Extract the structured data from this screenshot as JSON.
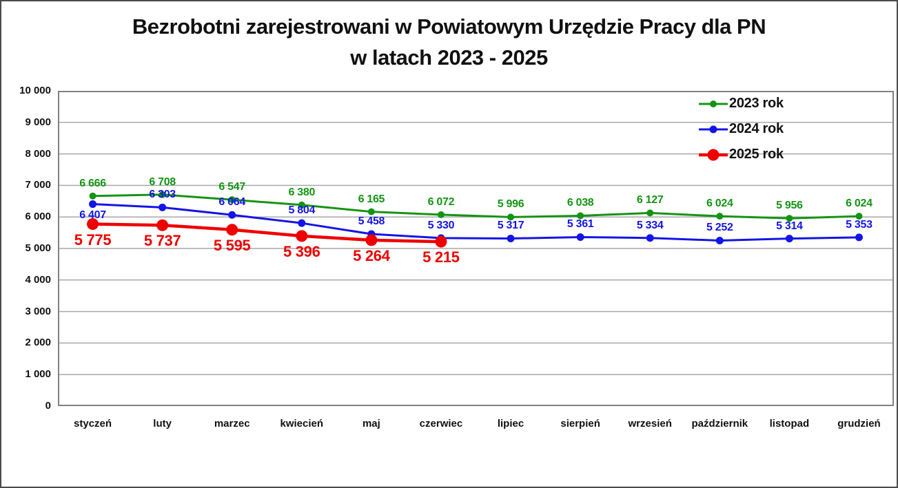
{
  "title": {
    "line1": "Bezrobotni zarejestrowani w Powiatowym Urzędzie Pracy dla PN",
    "line2": "w latach 2023 - 2025"
  },
  "chart_data": {
    "type": "line",
    "categories": [
      "styczeń",
      "luty",
      "marzec",
      "kwiecień",
      "maj",
      "czerwiec",
      "lipiec",
      "sierpień",
      "wrzesień",
      "październik",
      "listopad",
      "grudzień"
    ],
    "ylim": [
      0,
      10000
    ],
    "ytick_step": 1000,
    "ytick_labels": [
      "0",
      "1 000",
      "2 000",
      "3 000",
      "4 000",
      "5 000",
      "6 000",
      "7 000",
      "8 000",
      "9 000",
      "10 000"
    ],
    "grid": true,
    "grid_color": "#a8a8a8",
    "plot_border_color": "#808080",
    "legend_position": "top-right",
    "series": [
      {
        "name": "2023 rok",
        "color": "#149414",
        "values": [
          6666,
          6708,
          6547,
          6380,
          6165,
          6072,
          5996,
          6038,
          6127,
          6024,
          5956,
          6024
        ],
        "labels": [
          "6 666",
          "6 708",
          "6 547",
          "6 380",
          "6 165",
          "6 072",
          "5 996",
          "6 038",
          "6 127",
          "6 024",
          "5 956",
          "6 024"
        ],
        "label_position": "above",
        "label_exceptions": {},
        "marker_radius": 5,
        "stroke_width": 3,
        "label_size": "small"
      },
      {
        "name": "2024 rok",
        "color": "#1414e6",
        "values": [
          6407,
          6303,
          6064,
          5804,
          5458,
          5330,
          5317,
          5361,
          5334,
          5252,
          5314,
          5353
        ],
        "labels": [
          "6 407",
          "6 303",
          "6 064",
          "5 804",
          "5 458",
          "5 330",
          "5 317",
          "5 361",
          "5 334",
          "5 252",
          "5 314",
          "5 353"
        ],
        "label_position": "above",
        "label_exceptions": {
          "0": "below"
        },
        "marker_radius": 5.5,
        "stroke_width": 3,
        "label_size": "small"
      },
      {
        "name": "2025 rok",
        "color": "#ee0000",
        "values": [
          5775,
          5737,
          5595,
          5396,
          5264,
          5215
        ],
        "labels": [
          "5 775",
          "5 737",
          "5 595",
          "5 396",
          "5 264",
          "5 215"
        ],
        "label_position": "below",
        "label_exceptions": {},
        "marker_radius": 8.5,
        "stroke_width": 4.5,
        "label_size": "big"
      }
    ]
  }
}
